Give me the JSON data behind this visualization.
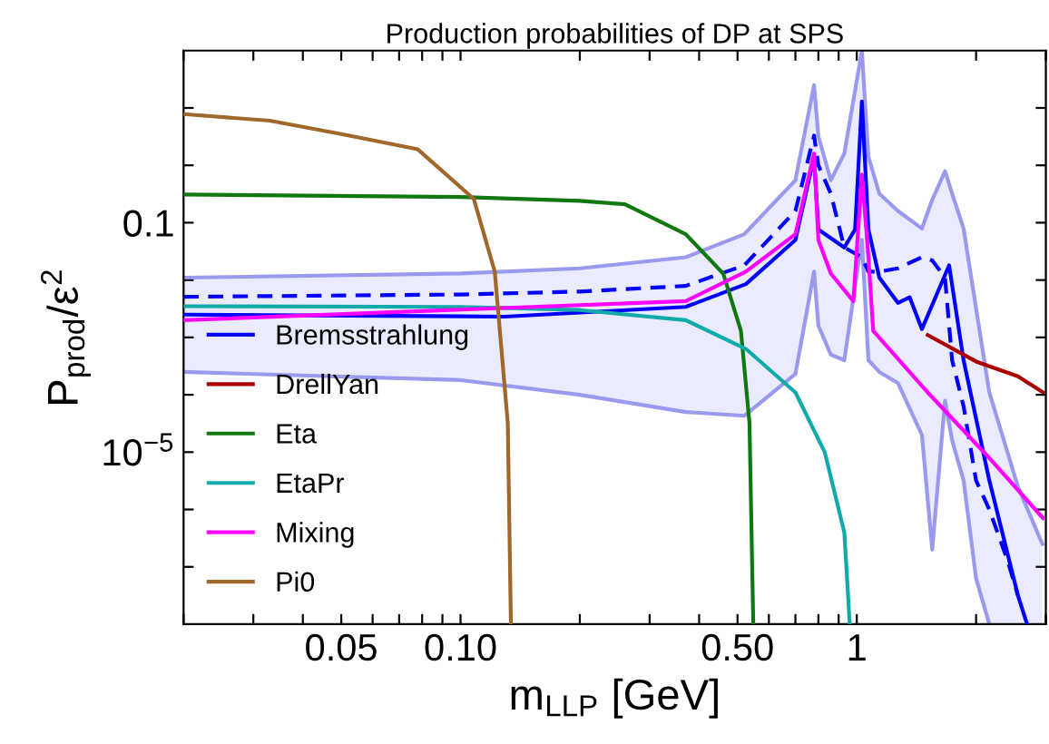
{
  "chart_data": {
    "type": "line",
    "title": "Production probabilities of DP at SPS",
    "xlabel": "m$_{LLP}$ [GeV]",
    "ylabel": "P$_{prod}$/ε$^{2}$",
    "log": "xy",
    "xlim": [
      0.02,
      3
    ],
    "ylim": [
      1e-08,
      100
    ],
    "xticks": [
      {
        "value": 0.02,
        "label": null
      },
      {
        "value": 0.03,
        "label": null
      },
      {
        "value": 0.04,
        "label": null
      },
      0.05,
      {
        "value": 0.06,
        "label": null
      },
      {
        "value": 0.07,
        "label": null
      },
      {
        "value": 0.08,
        "label": null
      },
      {
        "value": 0.09,
        "label": null
      },
      {
        "value": 0.1,
        "label": "0.10"
      },
      {
        "value": 0.2,
        "label": null
      },
      {
        "value": 0.3,
        "label": null
      },
      {
        "value": 0.4,
        "label": null
      },
      {
        "value": 0.5,
        "label": "0.50"
      },
      {
        "value": 0.6,
        "label": null
      },
      {
        "value": 0.7,
        "label": null
      },
      {
        "value": 0.8,
        "label": null
      },
      {
        "value": 0.9,
        "label": null
      },
      1,
      {
        "value": 2,
        "label": null
      },
      {
        "value": 3,
        "label": null
      }
    ],
    "yticks": [
      {
        "value": 1e-07,
        "label": null
      },
      {
        "value": 1e-06,
        "label": null
      },
      {
        "value": 1e-05,
        "label": "10$^{−5}$"
      },
      {
        "value": 0.0001,
        "label": null
      },
      {
        "value": 0.001,
        "label": null
      },
      {
        "value": 0.01,
        "label": null
      },
      0.1,
      {
        "value": 1,
        "label": null
      },
      {
        "value": 10,
        "label": null
      }
    ],
    "grid": false,
    "legend": "left",
    "marker": "none",
    "series": [
      {
        "color": "#0000ff",
        "line_style": "dashed",
        "x": [
          0.02,
          0.1,
          0.2,
          0.37,
          0.52,
          0.7,
          0.78,
          0.8,
          0.86,
          0.93,
          1.03,
          1.07,
          1.14,
          1.27,
          1.46,
          1.55,
          1.67,
          1.74,
          1.86,
          2.0,
          2.16,
          2.4,
          2.55,
          2.94
        ],
        "values": [
          0.0051,
          0.0056,
          0.0063,
          0.0079,
          0.018,
          0.16,
          3.3,
          1,
          0.32,
          0.037,
          0.025,
          0.014,
          0.014,
          0.016,
          0.025,
          0.022,
          0.011,
          0.0004,
          6.3e-05,
          3.2e-06,
          1e-06,
          1.3e-07,
          3.2e-08,
          null
        ],
        "upper": [
          0.011,
          0.013,
          0.016,
          0.025,
          0.063,
          0.55,
          25,
          3.2,
          0.55,
          1.6,
          100,
          1.4,
          0.32,
          0.16,
          0.079,
          0.25,
          0.79,
          0.32,
          0.079,
          0.0032,
          0.00011,
          1e-05,
          2.5e-06,
          2.5e-07
        ],
        "lower": [
          0.00025,
          0.00018,
          0.0001,
          5e-05,
          4.3e-05,
          0.00023,
          0.014,
          0.0016,
          0.0005,
          0.0004,
          0.05,
          0.0004,
          0.00025,
          0.00016,
          2e-05,
          2e-07,
          7.9e-05,
          1.6e-05,
          3.2e-06,
          6.3e-08,
          1e-08,
          1e-08,
          1e-08,
          1e-08
        ]
      },
      {
        "color": "#9999ee",
        "line_style": "solid",
        "x": [
          0.02,
          0.1,
          0.2,
          0.37,
          0.52,
          0.7,
          0.78,
          0.8,
          0.86,
          0.93,
          1.03,
          1.07,
          1.14,
          1.27,
          1.46,
          1.55,
          1.67,
          1.74,
          1.86,
          2.0,
          2.16,
          2.4,
          2.55,
          2.94
        ],
        "values": [
          0.011,
          0.013,
          0.016,
          0.025,
          0.063,
          0.55,
          25,
          3.2,
          0.55,
          1.6,
          100,
          1.4,
          0.32,
          0.16,
          0.079,
          0.25,
          0.79,
          0.32,
          0.079,
          0.0032,
          0.00011,
          1e-05,
          2.5e-06,
          2.5e-07
        ]
      },
      {
        "color": "#9999ee",
        "line_style": "solid",
        "x": [
          0.02,
          0.1,
          0.2,
          0.37,
          0.52,
          0.7,
          0.78,
          0.8,
          0.86,
          0.93,
          1.03,
          1.07,
          1.14,
          1.27,
          1.46,
          1.55,
          1.67,
          1.74,
          1.86,
          2.0,
          2.16
        ],
        "values": [
          0.00025,
          0.00018,
          0.0001,
          5e-05,
          4.3e-05,
          0.00023,
          0.014,
          0.0016,
          0.0005,
          0.0004,
          0.05,
          0.0004,
          0.00025,
          0.00016,
          2e-05,
          2e-07,
          7.9e-05,
          1.6e-05,
          3.2e-06,
          6.3e-08,
          1e-08
        ]
      },
      {
        "name": "Bremsstrahlung",
        "color": "#0000ff",
        "line_style": "solid",
        "x": [
          0.02,
          0.129,
          0.37,
          0.525,
          0.7,
          0.78,
          0.8,
          0.93,
          0.99,
          1.03,
          1.07,
          1.14,
          1.27,
          1.36,
          1.46,
          1.71,
          1.86,
          2.16,
          2.55,
          2.69
        ],
        "values": [
          0.0025,
          0.0023,
          0.0034,
          0.0085,
          0.05,
          1.4,
          0.076,
          0.037,
          0.076,
          13,
          0.076,
          0.011,
          0.004,
          0.005,
          0.0014,
          0.018,
          0.0004,
          3.2e-06,
          3.2e-08,
          1e-08
        ]
      },
      {
        "name": "DrellYan",
        "color": "#aa0000",
        "line_style": "solid",
        "x": [
          1.51,
          2.0,
          2.55,
          2.95
        ],
        "values": [
          0.0011,
          0.00038,
          0.00021,
          0.00011
        ]
      },
      {
        "name": "Eta",
        "color": "#117711",
        "line_style": "solid",
        "x": [
          0.02,
          0.1,
          0.2,
          0.26,
          0.37,
          0.46,
          0.51,
          0.536,
          0.548
        ],
        "values": [
          0.31,
          0.28,
          0.24,
          0.21,
          0.063,
          0.013,
          0.0013,
          3.2e-05,
          1e-08
        ]
      },
      {
        "name": "EtaPr",
        "color": "#11aaaa",
        "line_style": "solid",
        "x": [
          0.02,
          0.1,
          0.2,
          0.37,
          0.525,
          0.7,
          0.83,
          0.93,
          0.96
        ],
        "values": [
          0.0035,
          0.0034,
          0.003,
          0.002,
          0.00063,
          0.00011,
          1e-05,
          4e-07,
          1e-08
        ]
      },
      {
        "name": "Mixing",
        "color": "#ff00ff",
        "line_style": "solid",
        "x": [
          0.02,
          0.37,
          0.525,
          0.7,
          0.78,
          0.8,
          0.86,
          0.98,
          1.03,
          1.07,
          1.1,
          1.51,
          2.16,
          2.95
        ],
        "values": [
          0.002,
          0.0043,
          0.014,
          0.063,
          1.6,
          0.05,
          0.013,
          0.0043,
          0.69,
          0.025,
          0.0013,
          0.00011,
          7.9e-06,
          7.1e-07
        ]
      },
      {
        "name": "Pi0",
        "color": "#a0662a",
        "line_style": "solid",
        "x": [
          0.02,
          0.033,
          0.05,
          0.078,
          0.108,
          0.122,
          0.1316,
          0.134
        ],
        "values": [
          7.8,
          6,
          3.5,
          1.9,
          0.26,
          0.014,
          3.2e-05,
          1e-08
        ]
      }
    ]
  }
}
